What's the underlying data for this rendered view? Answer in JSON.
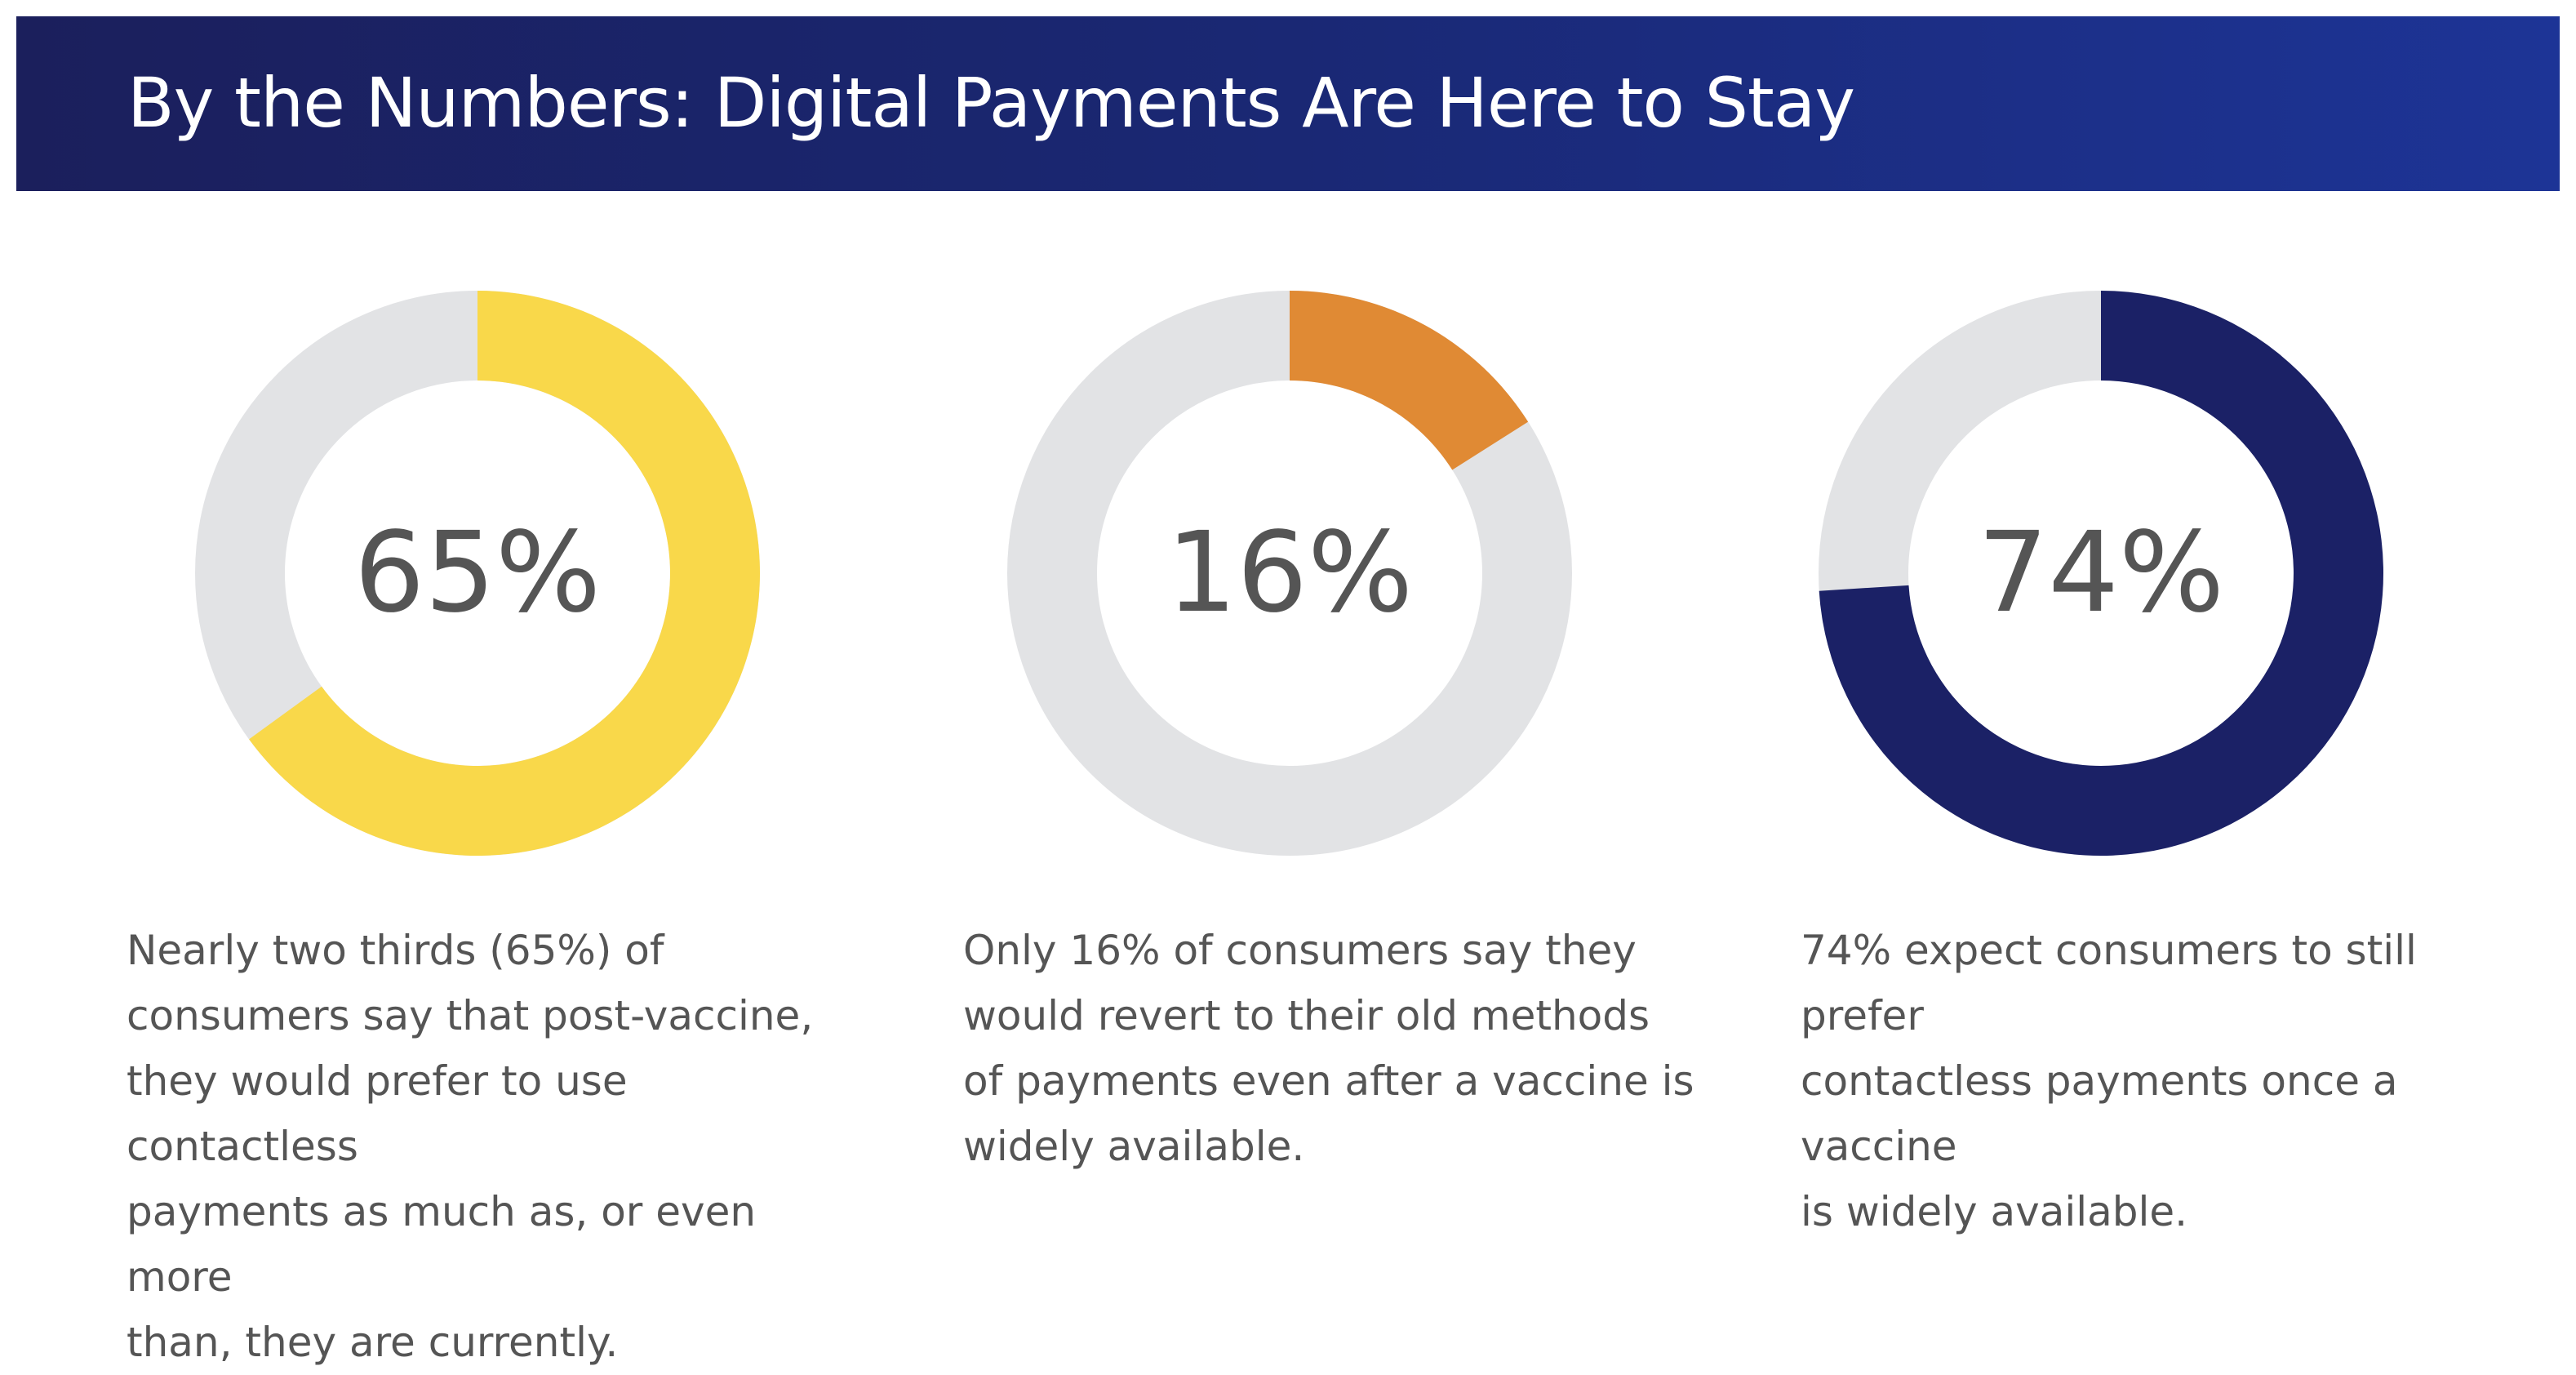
{
  "header": {
    "title": "By the Numbers: Digital Payments Are Here to Stay"
  },
  "colors": {
    "banner_left": "#1b1f5c",
    "banner_right": "#1d3496",
    "track": "#e2e3e5",
    "text": "#555555"
  },
  "chart_data": [
    {
      "type": "pie",
      "style": "donut",
      "value": 65,
      "label": "65%",
      "color": "#f9d84a",
      "track_color": "#e2e3e5",
      "caption": "Nearly two thirds (65%) of\nconsumers say that post-vaccine,\nthey would prefer to use contactless\npayments as much as, or even more\nthan, they are currently."
    },
    {
      "type": "pie",
      "style": "donut",
      "value": 16,
      "label": "16%",
      "color": "#e08a34",
      "track_color": "#e2e3e5",
      "caption": "Only 16% of consumers say they\nwould revert to their old methods\nof payments even after a vaccine is\nwidely available."
    },
    {
      "type": "pie",
      "style": "donut",
      "value": 74,
      "label": "74%",
      "color": "#1b2166",
      "track_color": "#e2e3e5",
      "caption": "74% expect consumers to still prefer\ncontactless payments once a vaccine\nis widely available."
    }
  ]
}
